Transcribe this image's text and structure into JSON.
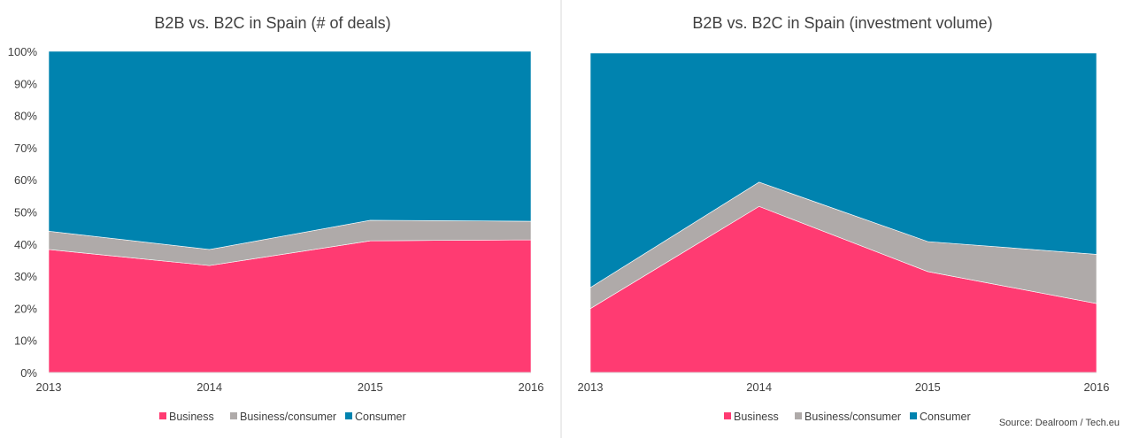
{
  "colors": {
    "Business": "#ff3b72",
    "Business/consumer": "#afaaa9",
    "Consumer": "#0083af"
  },
  "source": "Source: Dealroom / Tech.eu",
  "chart_data": [
    {
      "type": "area",
      "stacked": "percent",
      "title": "B2B vs. B2C in Spain (# of deals)",
      "categories": [
        "2013",
        "2014",
        "2015",
        "2016"
      ],
      "y_ticks": [
        "0%",
        "10%",
        "20%",
        "30%",
        "40%",
        "50%",
        "60%",
        "70%",
        "80%",
        "90%",
        "100%"
      ],
      "ylim": [
        0,
        100
      ],
      "legend_position": "bottom",
      "series": [
        {
          "name": "Business",
          "values": [
            38.3,
            33.3,
            41.0,
            41.3
          ]
        },
        {
          "name": "Business/consumer",
          "values": [
            5.7,
            5.0,
            6.4,
            5.8
          ]
        },
        {
          "name": "Consumer",
          "values": [
            56.0,
            61.7,
            52.6,
            52.9
          ]
        }
      ]
    },
    {
      "type": "area",
      "stacked": "percent",
      "title": "B2B vs. B2C in Spain (investment volume)",
      "categories": [
        "2013",
        "2014",
        "2015",
        "2016"
      ],
      "y_ticks": [],
      "ylim": [
        0,
        100
      ],
      "legend_position": "bottom",
      "series": [
        {
          "name": "Business",
          "values": [
            20.0,
            52.0,
            31.6,
            21.6
          ]
        },
        {
          "name": "Business/consumer",
          "values": [
            6.6,
            7.6,
            9.4,
            15.4
          ]
        },
        {
          "name": "Consumer",
          "values": [
            73.4,
            40.4,
            59.0,
            63.0
          ]
        }
      ]
    }
  ]
}
